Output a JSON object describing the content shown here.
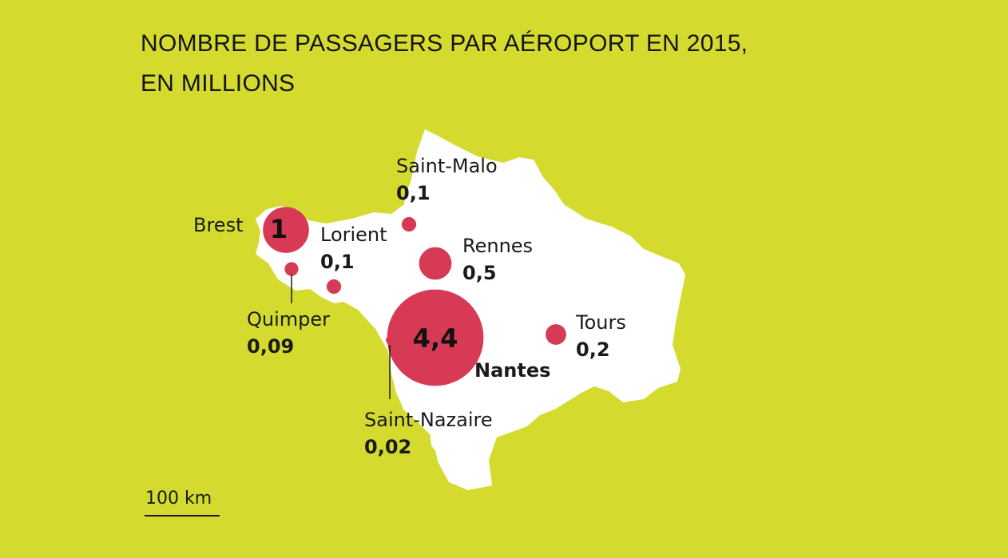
{
  "title": {
    "line1": "NOMBRE DE PASSAGERS PAR AÉROPORT EN 2015,",
    "line2": "EN MILLIONS"
  },
  "colors": {
    "background": "#d4db2e",
    "land": "#ffffff",
    "bubble": "#d63a54",
    "text": "#1a1a1a"
  },
  "airports": [
    {
      "id": "brest",
      "name": "Brest",
      "value": 1,
      "value_text": "1"
    },
    {
      "id": "saint-malo",
      "name": "Saint-Malo",
      "value": 0.1,
      "value_text": "0,1"
    },
    {
      "id": "lorient",
      "name": "Lorient",
      "value": 0.1,
      "value_text": "0,1"
    },
    {
      "id": "rennes",
      "name": "Rennes",
      "value": 0.5,
      "value_text": "0,5"
    },
    {
      "id": "quimper",
      "name": "Quimper",
      "value": 0.09,
      "value_text": "0,09"
    },
    {
      "id": "nantes",
      "name": "Nantes",
      "value": 4.4,
      "value_text": "4,4"
    },
    {
      "id": "tours",
      "name": "Tours",
      "value": 0.2,
      "value_text": "0,2"
    },
    {
      "id": "saint-nazaire",
      "name": "Saint-Nazaire",
      "value": 0.02,
      "value_text": "0,02"
    }
  ],
  "scale": {
    "label": "100 km"
  }
}
